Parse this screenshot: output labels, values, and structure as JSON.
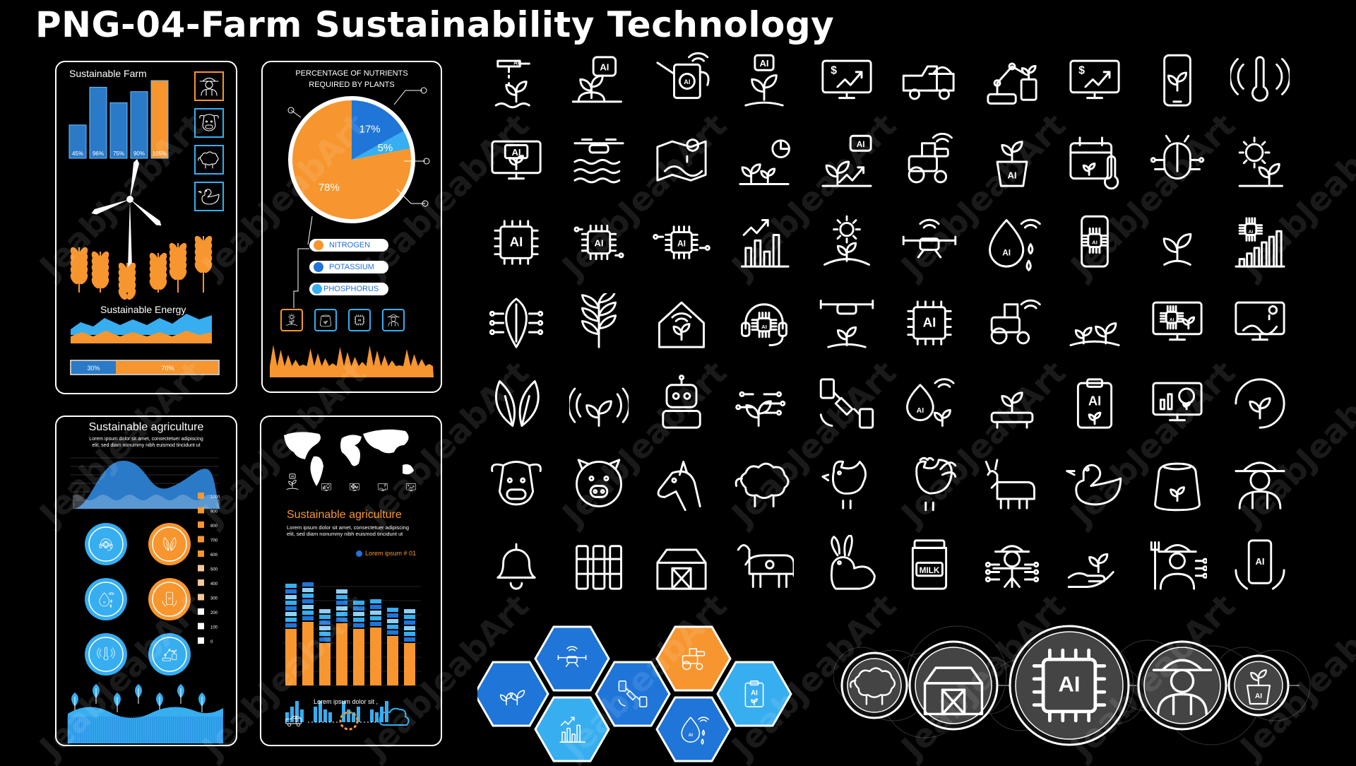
{
  "title": "PNG-04-Farm Sustainability Technology",
  "watermark": "JeabJeabArt",
  "panel1": {
    "title": "Sustainable Farm",
    "bars": [
      {
        "label": "45%",
        "value": 45
      },
      {
        "label": "96%",
        "value": 96
      },
      {
        "label": "75%",
        "value": 75
      },
      {
        "label": "90%",
        "value": 90
      },
      {
        "label": "105%",
        "value": 105
      }
    ],
    "energy_title": "Sustainable Energy",
    "split": [
      {
        "label": "30%",
        "value": 30
      },
      {
        "label": "70%",
        "value": 70
      }
    ],
    "side_icons": [
      "farmer-icon",
      "cow-icon",
      "sheep-icon",
      "duck-icon"
    ]
  },
  "panel2": {
    "title_line1": "PERCENTAGE OF NUTRIENTS",
    "title_line2": "REQUIRED BY PLANTS",
    "pie": [
      {
        "label": "78%",
        "value": 78,
        "color": "#f7962e"
      },
      {
        "label": "17%",
        "value": 17,
        "color": "#1f75d8"
      },
      {
        "label": "5%",
        "value": 5,
        "color": "#37aef0"
      }
    ],
    "legend": [
      {
        "label": "NITROGEN",
        "color": "#f7962e"
      },
      {
        "label": "POTASSIUM",
        "color": "#1f75d8"
      },
      {
        "label": "PHOSPHORUS",
        "color": "#37aef0"
      }
    ]
  },
  "panel3": {
    "title": "Sustainable agriculture",
    "text1": "Lorem ipsum dolor sit amet, consectetuer adipiscing",
    "text2": "elit, sed diam nonummy nibh euismod tincidunt ut",
    "y_ticks": [
      "1000",
      "900",
      "800",
      "700",
      "600",
      "500",
      "400",
      "300",
      "200",
      "100",
      "0"
    ]
  },
  "panel4": {
    "title": "Sustainable agriculture",
    "text1": "Lorem ipsum dolor sit amet, consectetuer adipiscing",
    "text2": "elit, sed diam nonummy nibh euismod tincidunt ut",
    "legend": "Lorem ipsum # 01",
    "footer": "Lorem ipsum dolor sit ,"
  },
  "icon_rows": [
    [
      "ai-irrigation-icon",
      "ai-plant-icon",
      "ai-watering-can-icon",
      "ai-sprout-icon",
      "finance-monitor-icon",
      "farm-truck-icon",
      "robot-arm-icon",
      "finance-monitor-icon",
      "smartphone-plant-icon",
      "temperature-sensor-icon"
    ],
    [
      "ai-monitor-icon",
      "drone-water-icon",
      "field-map-icon",
      "growth-chart-icon",
      "ai-growth-icon",
      "smart-tractor-icon",
      "ai-pot-icon",
      "calendar-temperature-icon",
      "bug-circuit-icon",
      "sun-gear-plant-icon"
    ],
    [
      "ai-chip-icon",
      "ai-chip-circuit-icon",
      "ai-chip-small-icon",
      "growth-bars-icon",
      "sun-plant-icon",
      "wifi-drone-icon",
      "ai-water-drop-icon",
      "ai-smartphone-icon",
      "sprout-icon",
      "ai-bars-icon"
    ],
    [
      "leaf-circuit-icon",
      "plant-leaves-icon",
      "greenhouse-icon",
      "ai-headset-icon",
      "drone-plant-icon",
      "ai-chip-icon",
      "wifi-tractor-icon",
      "seedlings-icon",
      "ai-computer-plant-icon",
      "monitor-map-icon"
    ],
    [
      "leaves-icon",
      "wifi-plant-icon",
      "robot-icon",
      "circuit-plant-icon",
      "satellite-icon",
      "ai-drop-plant-icon",
      "plant-stand-icon",
      "ai-clipboard-icon",
      "monitor-chart-icon",
      "circle-sprout-icon"
    ],
    [
      "cow-icon",
      "pig-icon",
      "horse-icon",
      "sheep-icon",
      "hen-icon",
      "rooster-icon",
      "goat-icon",
      "duck-icon",
      "seed-sack-icon",
      "farmer-icon"
    ],
    [
      "bell-icon",
      "fence-icon",
      "barn-icon",
      "cow-body-icon",
      "rabbit-icon",
      "milk-can-icon",
      "scarecrow-circuit-icon",
      "hand-sprout-icon",
      "farmer-fork-icon",
      "ai-phone-hands-icon"
    ]
  ],
  "hexes": [
    {
      "icon": "plants-icon",
      "color": "#1f75d8"
    },
    {
      "icon": "wifi-drone-icon",
      "color": "#1f75d8"
    },
    {
      "icon": "growth-bars-icon",
      "color": "#37aef0"
    },
    {
      "icon": "satellite-icon",
      "color": "#1f75d8"
    },
    {
      "icon": "tractor-icon",
      "color": "#f7962e"
    },
    {
      "icon": "ai-water-drop-icon",
      "color": "#1f75d8"
    },
    {
      "icon": "ai-clipboard-icon",
      "color": "#37aef0"
    }
  ],
  "network": [
    {
      "icon": "sheep-icon"
    },
    {
      "icon": "barn-icon"
    },
    {
      "icon": "ai-chip-icon"
    },
    {
      "icon": "farmer-icon"
    },
    {
      "icon": "ai-pot-icon"
    }
  ],
  "colors": {
    "orange": "#f7962e",
    "blue": "#1f75d8",
    "light_blue": "#37aef0"
  }
}
